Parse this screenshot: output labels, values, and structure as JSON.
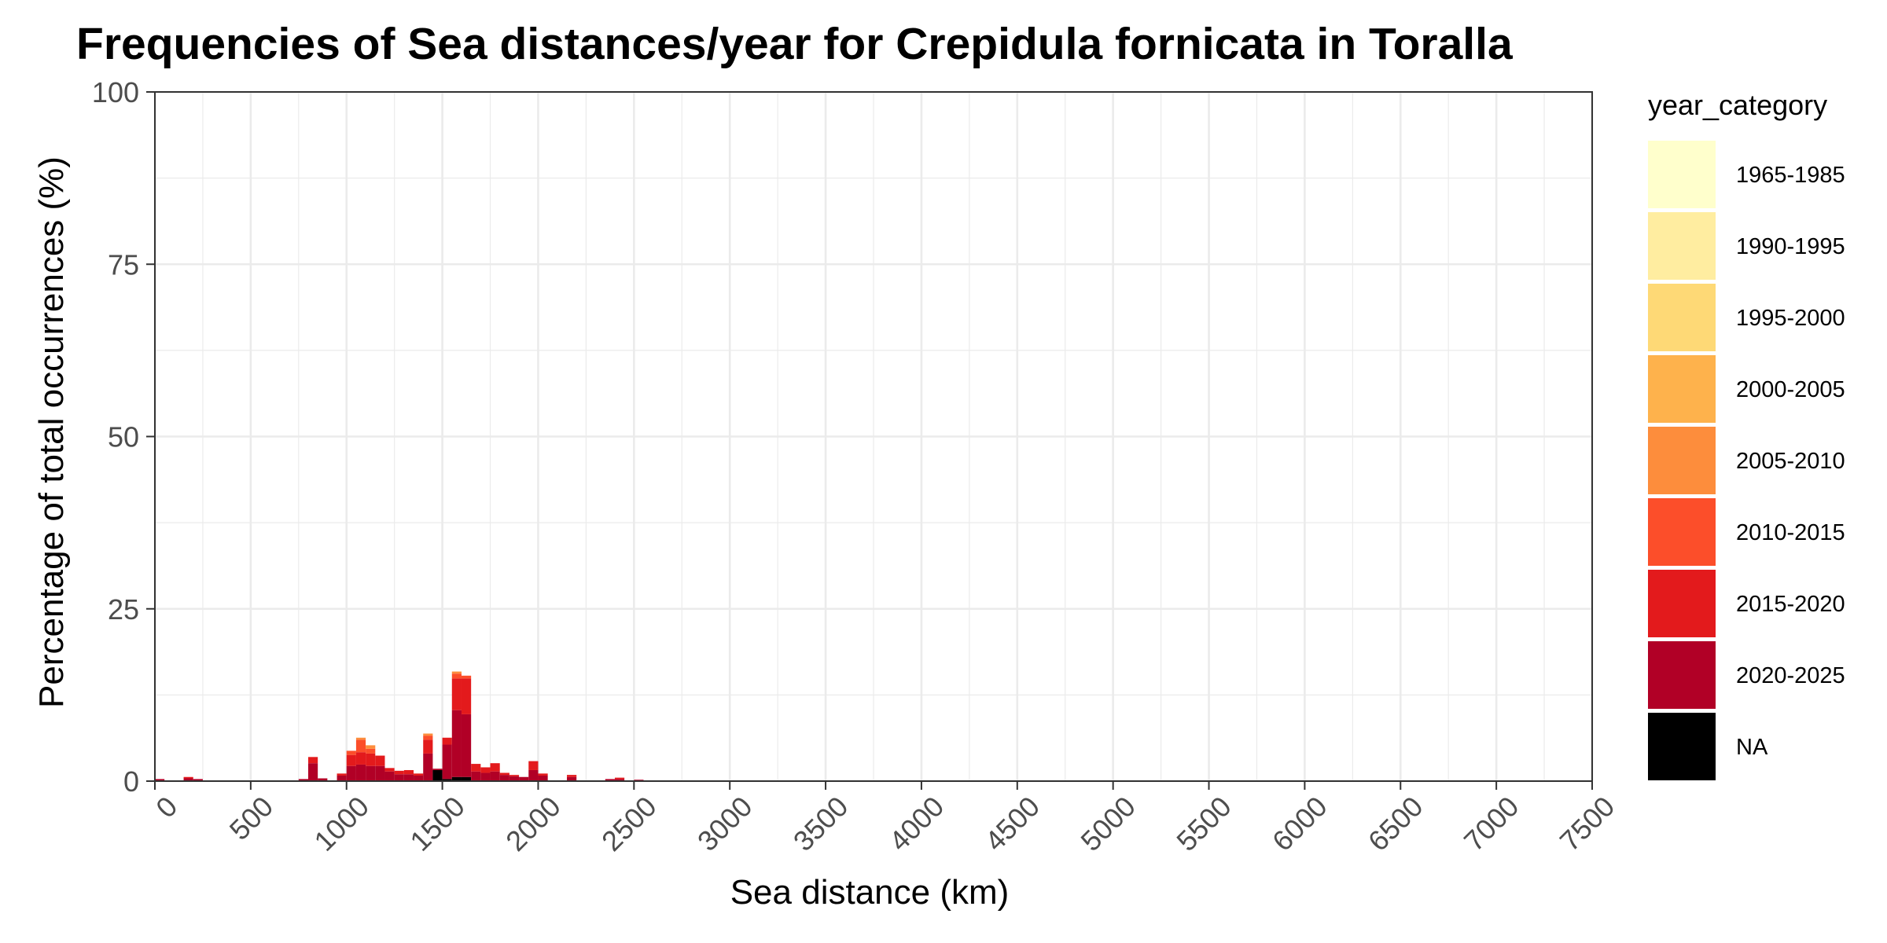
{
  "chart_data": {
    "type": "bar",
    "title": "Frequencies of Sea distances/year for Crepidula fornicata in Toralla",
    "xlabel": "Sea distance (km)",
    "ylabel": "Percentage of total occurrences (%)",
    "xlim": [
      0,
      7500
    ],
    "ylim": [
      0,
      100
    ],
    "x_ticks": [
      "0",
      "500",
      "1000",
      "1500",
      "2000",
      "2500",
      "3000",
      "3500",
      "4000",
      "4500",
      "5000",
      "5500",
      "6000",
      "6500",
      "7000",
      "7500"
    ],
    "y_ticks": [
      "0",
      "25",
      "50",
      "75",
      "100"
    ],
    "grid": true,
    "bin_width": 50,
    "stacked": true,
    "legend": {
      "title": "year_category",
      "position": "right",
      "entries": [
        {
          "name": "1965-1985",
          "color": "#FFFFCC"
        },
        {
          "name": "1990-1995",
          "color": "#FFEDA0"
        },
        {
          "name": "1995-2000",
          "color": "#FED976"
        },
        {
          "name": "2000-2005",
          "color": "#FEB24C"
        },
        {
          "name": "2005-2010",
          "color": "#FD8D3C"
        },
        {
          "name": "2010-2015",
          "color": "#FC4E2A"
        },
        {
          "name": "2015-2020",
          "color": "#E31A1C"
        },
        {
          "name": "2020-2025",
          "color": "#B10026"
        },
        {
          "name": "NA",
          "color": "#000000"
        }
      ]
    },
    "bins": [
      {
        "x": 0,
        "segments": {
          "2020-2025": 0.3
        }
      },
      {
        "x": 150,
        "segments": {
          "2020-2025": 0.4,
          "2015-2020": 0.2
        }
      },
      {
        "x": 200,
        "segments": {
          "2020-2025": 0.3
        }
      },
      {
        "x": 750,
        "segments": {
          "2020-2025": 0.3
        }
      },
      {
        "x": 800,
        "segments": {
          "2020-2025": 2.6,
          "2015-2020": 0.9
        }
      },
      {
        "x": 850,
        "segments": {
          "2020-2025": 0.4
        }
      },
      {
        "x": 950,
        "segments": {
          "2020-2025": 0.8,
          "2015-2020": 0.3
        }
      },
      {
        "x": 1000,
        "segments": {
          "2020-2025": 2.2,
          "2015-2020": 1.6,
          "2010-2015": 0.6
        }
      },
      {
        "x": 1050,
        "segments": {
          "2020-2025": 2.4,
          "2015-2020": 1.8,
          "2010-2015": 1.8,
          "2005-2010": 0.3
        }
      },
      {
        "x": 1100,
        "segments": {
          "2020-2025": 2.2,
          "2015-2020": 1.8,
          "2010-2015": 0.7,
          "2005-2010": 0.5
        }
      },
      {
        "x": 1150,
        "segments": {
          "2020-2025": 2.2,
          "2015-2020": 1.5
        }
      },
      {
        "x": 1200,
        "segments": {
          "2020-2025": 1.4,
          "2015-2020": 0.5
        }
      },
      {
        "x": 1250,
        "segments": {
          "2020-2025": 1.0,
          "2015-2020": 0.5
        }
      },
      {
        "x": 1300,
        "segments": {
          "2020-2025": 1.0,
          "2015-2020": 0.6
        }
      },
      {
        "x": 1350,
        "segments": {
          "2020-2025": 0.8,
          "2015-2020": 0.3
        }
      },
      {
        "x": 1400,
        "segments": {
          "2020-2025": 4.0,
          "2015-2020": 2.0,
          "2010-2015": 0.6,
          "2005-2010": 0.3
        }
      },
      {
        "x": 1450,
        "segments": {
          "NA": 1.6,
          "2020-2025": 0.2
        }
      },
      {
        "x": 1500,
        "segments": {
          "NA": 0.3,
          "2020-2025": 5.0,
          "2015-2020": 1.0
        }
      },
      {
        "x": 1550,
        "segments": {
          "NA": 0.6,
          "2020-2025": 9.7,
          "2015-2020": 4.6,
          "2010-2015": 0.7,
          "2005-2010": 0.3
        }
      },
      {
        "x": 1600,
        "segments": {
          "NA": 0.6,
          "2020-2025": 9.1,
          "2015-2020": 5.2,
          "2010-2015": 0.4
        }
      },
      {
        "x": 1650,
        "segments": {
          "2020-2025": 1.4,
          "2015-2020": 1.1
        }
      },
      {
        "x": 1700,
        "segments": {
          "2020-2025": 1.2,
          "2015-2020": 0.8
        }
      },
      {
        "x": 1750,
        "segments": {
          "2020-2025": 1.4,
          "2015-2020": 1.2
        }
      },
      {
        "x": 1800,
        "segments": {
          "2020-2025": 0.9,
          "2015-2020": 0.3
        }
      },
      {
        "x": 1850,
        "segments": {
          "2020-2025": 0.7,
          "2015-2020": 0.2
        }
      },
      {
        "x": 1900,
        "segments": {
          "2020-2025": 0.6
        }
      },
      {
        "x": 1950,
        "segments": {
          "2020-2025": 1.6,
          "2015-2020": 1.3
        }
      },
      {
        "x": 2000,
        "segments": {
          "2020-2025": 0.8,
          "2015-2020": 0.3
        }
      },
      {
        "x": 2150,
        "segments": {
          "2020-2025": 0.6,
          "2015-2020": 0.3
        }
      },
      {
        "x": 2350,
        "segments": {
          "2020-2025": 0.3
        }
      },
      {
        "x": 2400,
        "segments": {
          "2020-2025": 0.3,
          "2015-2020": 0.2
        }
      },
      {
        "x": 2500,
        "segments": {
          "2020-2025": 0.2
        }
      }
    ]
  }
}
